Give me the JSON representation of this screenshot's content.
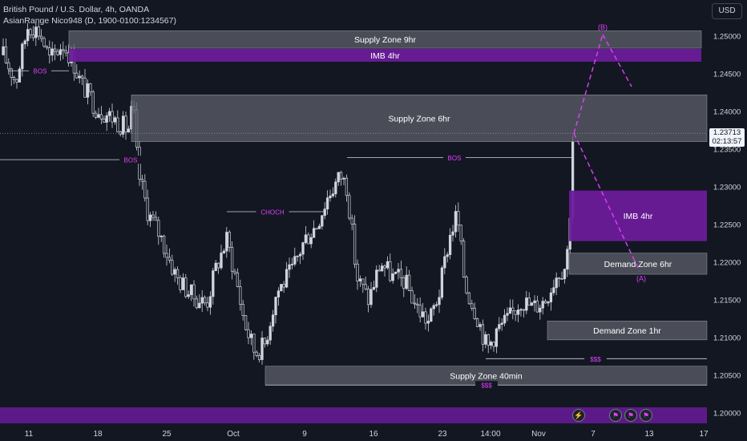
{
  "header": {
    "title": "British Pound / U.S. Dollar, 4h, OANDA",
    "indicator": "AsianRange Nico948 (D, 1900-0100:1234567)",
    "currency_button": "USD"
  },
  "last_price": {
    "price": "1.23713",
    "countdown": "02:13:57"
  },
  "colors": {
    "background": "#131722",
    "zone_gray": "#5d606b",
    "zone_purple": "#6a1b9a",
    "projection": "#e040fb",
    "candle": "#d1d4dc"
  },
  "chart_data": {
    "type": "candlestick",
    "ylim": [
      1.197,
      1.2538
    ],
    "y_ticks": [
      "1.25000",
      "1.24500",
      "1.24000",
      "1.23500",
      "1.23000",
      "1.22500",
      "1.22000",
      "1.21500",
      "1.21000",
      "1.20500",
      "1.20000"
    ],
    "x_ticks": [
      "11",
      "18",
      "25",
      "Oct",
      "9",
      "16",
      "23",
      "14:00",
      "Nov",
      "7",
      "13",
      "17"
    ],
    "zones": [
      {
        "label": "Supply Zone 9hr",
        "kind": "gray",
        "top": 1.2507,
        "bottom": 1.2484
      },
      {
        "label": "IMB 4hr",
        "kind": "purple",
        "top": 1.2483,
        "bottom": 1.2466
      },
      {
        "label": "Supply Zone 6hr",
        "kind": "gray",
        "top": 1.2422,
        "bottom": 1.236
      },
      {
        "label": "IMB 4hr",
        "kind": "purple",
        "top": 1.2295,
        "bottom": 1.2228
      },
      {
        "label": "Demand Zone 6hr",
        "kind": "gray",
        "top": 1.2212,
        "bottom": 1.2184
      },
      {
        "label": "Demand Zone 1hr",
        "kind": "gray",
        "top": 1.2122,
        "bottom": 1.2097
      },
      {
        "label": "Supply Zone 40min",
        "kind": "gray",
        "top": 1.2062,
        "bottom": 1.2037
      }
    ],
    "annotations": [
      {
        "label": "BOS",
        "level": 1.2454
      },
      {
        "label": "BOS",
        "level": 1.2336
      },
      {
        "label": "CHOCH",
        "level": 1.2267
      },
      {
        "label": "BOS",
        "level": 1.2339
      },
      {
        "label": "$$$",
        "level": 1.2072
      },
      {
        "label": "$$$",
        "level": 1.2037
      }
    ],
    "projection": [
      {
        "label": "(B)",
        "price": 1.2502
      },
      {
        "label": "",
        "price": 1.2433
      },
      {
        "label": "(A)",
        "price": 1.2188
      }
    ],
    "last_price_line": 1.2371
  }
}
